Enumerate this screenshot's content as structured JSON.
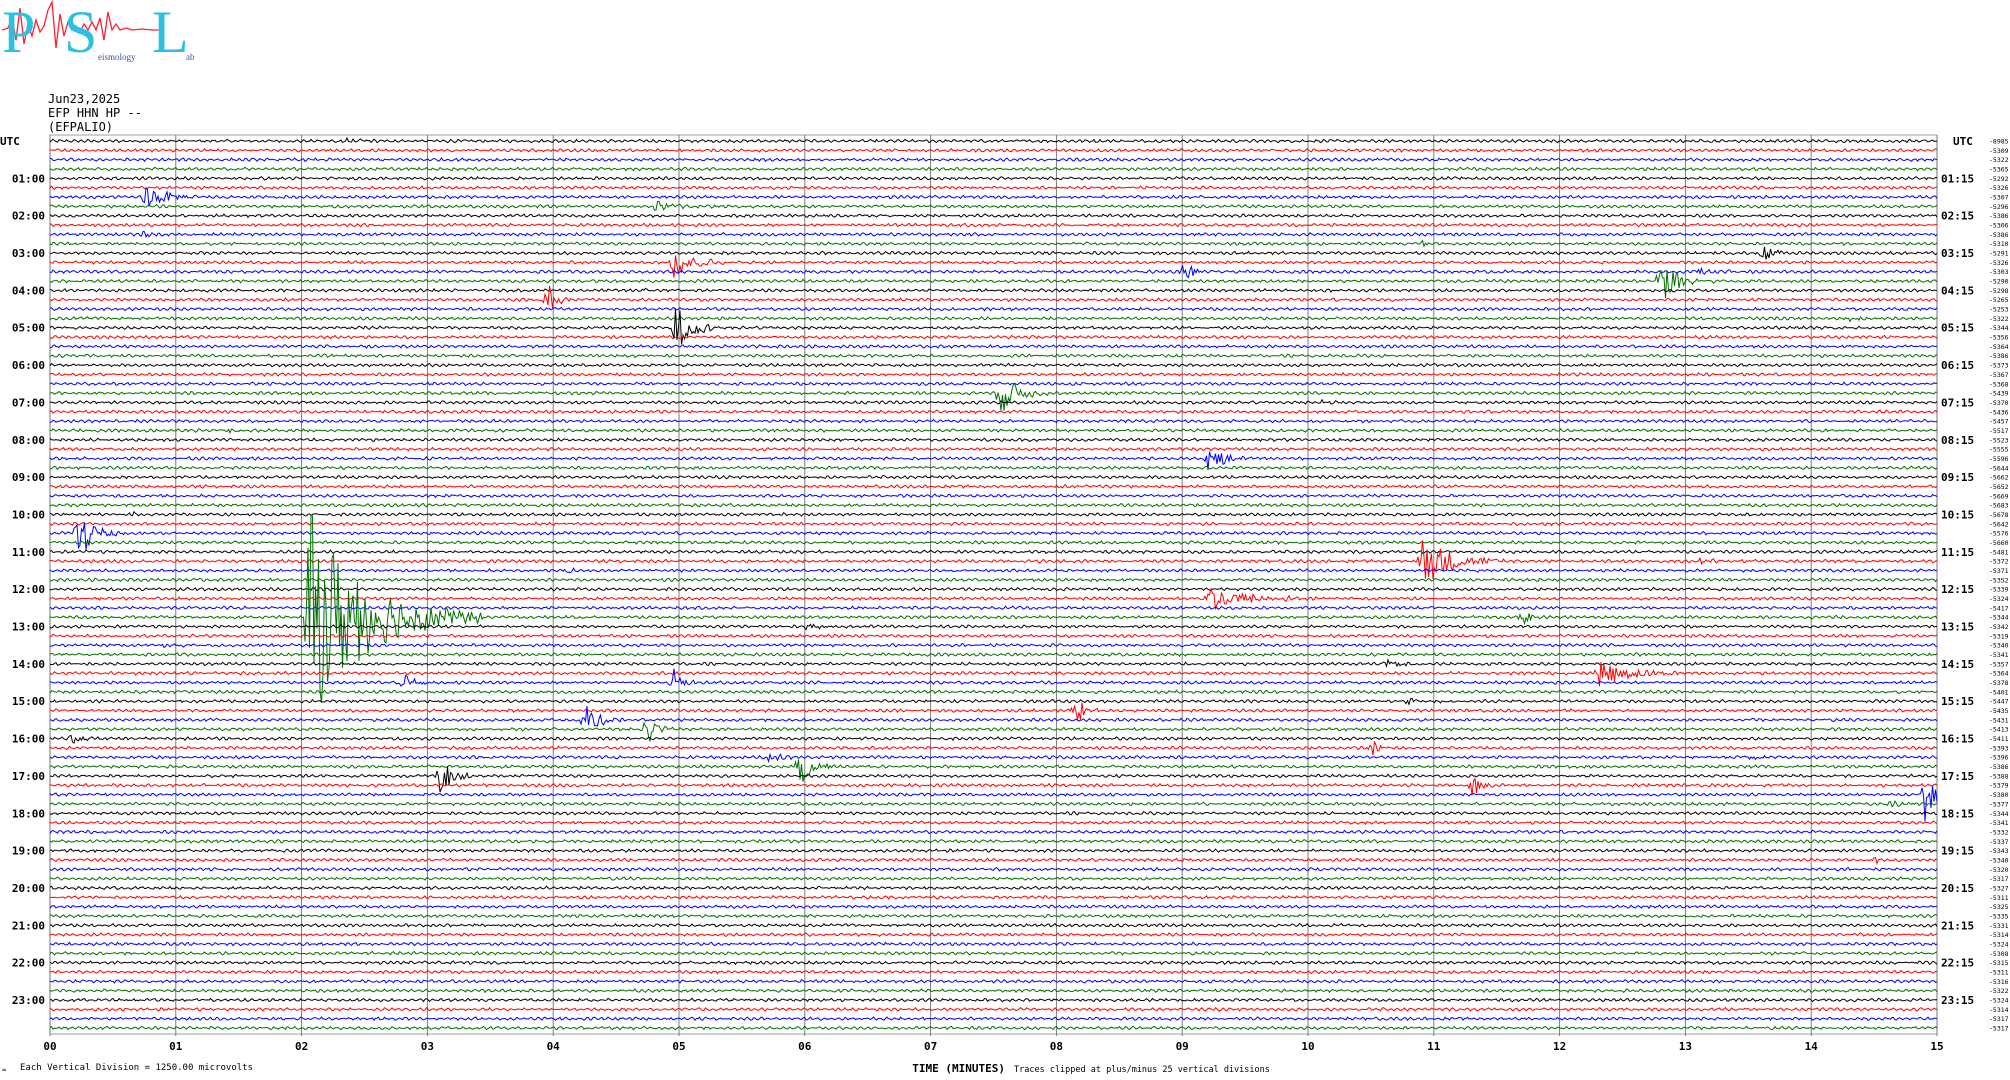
{
  "logo": {
    "letters": [
      "P",
      "S",
      "L"
    ],
    "small_words": [
      "eismology",
      "ab"
    ]
  },
  "header": {
    "date": "Jun23,2025",
    "station": "EFP HHN HP --",
    "site": "(EFPALIO)"
  },
  "footer": {
    "division_note": "Each Vertical Division = 1250.00 microvolts",
    "clip_note": "Traces clipped at plus/minus 25 vertical divisions",
    "corner_mark": "≈"
  },
  "colors": {
    "trace_cycle": [
      "#000000",
      "#ff0000",
      "#0000ff",
      "#007000"
    ],
    "grid": "#707070"
  },
  "chart_data": {
    "type": "line",
    "xlabel": "TIME (MINUTES)",
    "x_ticks": [
      "00",
      "01",
      "02",
      "03",
      "04",
      "05",
      "06",
      "07",
      "08",
      "09",
      "10",
      "11",
      "12",
      "13",
      "14",
      "15"
    ],
    "xlim": [
      0,
      15
    ],
    "left_axis_title": "UTC",
    "right_axis_title": "UTC",
    "left_hour_labels": [
      "01:00",
      "02:00",
      "03:00",
      "04:00",
      "05:00",
      "06:00",
      "07:00",
      "08:00",
      "09:00",
      "10:00",
      "11:00",
      "12:00",
      "13:00",
      "14:00",
      "15:00",
      "16:00",
      "17:00",
      "18:00",
      "19:00",
      "20:00",
      "21:00",
      "22:00",
      "23:00"
    ],
    "right_hour_labels": [
      "01:15",
      "02:15",
      "03:15",
      "04:15",
      "05:15",
      "06:15",
      "07:15",
      "08:15",
      "09:15",
      "10:15",
      "11:15",
      "12:15",
      "13:15",
      "14:15",
      "15:15",
      "16:15",
      "17:15",
      "18:15",
      "19:15",
      "20:15",
      "21:15",
      "22:15",
      "23:15"
    ],
    "trace_count": 96,
    "trace_offsets": [
      "-8985",
      "-5309",
      "-5322",
      "-5365",
      "-5292",
      "-5326",
      "-5307",
      "-5296",
      "-5386",
      "-5306",
      "-5386",
      "-5310",
      "-5291",
      "-5326",
      "-5303",
      "-5290",
      "-5298",
      "-5265",
      "-5253",
      "-5322",
      "-5344",
      "-5356",
      "-5364",
      "-5386",
      "-5373",
      "-5367",
      "-5368",
      "-5439",
      "-5370",
      "-5436",
      "-5457",
      "-5517",
      "-5523",
      "-5555",
      "-5596",
      "-5644",
      "-5662",
      "-5652",
      "-5669",
      "-5683",
      "-5678",
      "-5642",
      "-5576",
      "-5660",
      "-5481",
      "-5372",
      "-5371",
      "-5352",
      "-5339",
      "-5324",
      "-5417",
      "-5344",
      "-5342",
      "-5319",
      "-5340",
      "-5341",
      "-5357",
      "-5364",
      "-5378",
      "-5401",
      "-5447",
      "-5435",
      "-5431",
      "-5413",
      "-5411",
      "-5393",
      "-5396",
      "-5386",
      "-5388",
      "-5379",
      "-5380",
      "-5377",
      "-5344",
      "-5341",
      "-5332",
      "-5337",
      "-5343",
      "-5340",
      "-5320",
      "-5317",
      "-5327",
      "-5311",
      "-5325",
      "-5335",
      "-5331",
      "-5314",
      "-5324",
      "-5308",
      "-5315",
      "-5311",
      "-5316",
      "-5322",
      "-5324",
      "-5314",
      "-5317",
      "-5317"
    ],
    "noise_level_divisions": 0.18,
    "events": [
      {
        "trace": 0,
        "minute": 2.3,
        "amp": 0.6,
        "dur": 0.5
      },
      {
        "trace": 6,
        "minute": 0.75,
        "amp": 3.0,
        "dur": 0.5
      },
      {
        "trace": 7,
        "minute": 4.8,
        "amp": 1.2,
        "dur": 0.6
      },
      {
        "trace": 10,
        "minute": 0.72,
        "amp": 0.8,
        "dur": 0.3
      },
      {
        "trace": 11,
        "minute": 10.9,
        "amp": 0.7,
        "dur": 0.3
      },
      {
        "trace": 12,
        "minute": 13.6,
        "amp": 2.6,
        "dur": 0.3
      },
      {
        "trace": 13,
        "minute": 4.95,
        "amp": 4.0,
        "dur": 0.5
      },
      {
        "trace": 14,
        "minute": 9.0,
        "amp": 3.0,
        "dur": 0.2
      },
      {
        "trace": 15,
        "minute": 12.8,
        "amp": 5.0,
        "dur": 0.5
      },
      {
        "trace": 14,
        "minute": 13.1,
        "amp": 0.5,
        "dur": 0.8
      },
      {
        "trace": 16,
        "minute": 4.7,
        "amp": 0.8,
        "dur": 0.2
      },
      {
        "trace": 17,
        "minute": 3.95,
        "amp": 4.5,
        "dur": 0.2
      },
      {
        "trace": 19,
        "minute": 14.3,
        "amp": 0.5,
        "dur": 0.4
      },
      {
        "trace": 20,
        "minute": 4.95,
        "amp": 6.0,
        "dur": 0.4
      },
      {
        "trace": 22,
        "minute": 2.5,
        "amp": 0.5,
        "dur": 0.2
      },
      {
        "trace": 27,
        "minute": 7.55,
        "amp": 5.0,
        "dur": 0.4
      },
      {
        "trace": 28,
        "minute": 10.1,
        "amp": 0.5,
        "dur": 0.3
      },
      {
        "trace": 31,
        "minute": 1.4,
        "amp": 0.5,
        "dur": 0.3
      },
      {
        "trace": 34,
        "minute": 9.2,
        "amp": 3.5,
        "dur": 0.4
      },
      {
        "trace": 37,
        "minute": 8.0,
        "amp": 0.4,
        "dur": 0.3
      },
      {
        "trace": 40,
        "minute": 0.6,
        "amp": 0.5,
        "dur": 0.6
      },
      {
        "trace": 42,
        "minute": 0.22,
        "amp": 7.0,
        "dur": 0.4
      },
      {
        "trace": 45,
        "minute": 10.9,
        "amp": 6.0,
        "dur": 0.7
      },
      {
        "trace": 45,
        "minute": 13.1,
        "amp": 0.7,
        "dur": 0.5
      },
      {
        "trace": 46,
        "minute": 4.1,
        "amp": 0.6,
        "dur": 0.3
      },
      {
        "trace": 49,
        "minute": 9.2,
        "amp": 3.0,
        "dur": 0.9
      },
      {
        "trace": 51,
        "minute": 2.05,
        "amp": 24.0,
        "dur": 1.4
      },
      {
        "trace": 51,
        "minute": 11.7,
        "amp": 2.5,
        "dur": 0.2
      },
      {
        "trace": 52,
        "minute": 6.0,
        "amp": 0.7,
        "dur": 0.4
      },
      {
        "trace": 54,
        "minute": 0.9,
        "amp": 0.5,
        "dur": 0.4
      },
      {
        "trace": 56,
        "minute": 10.6,
        "amp": 1.0,
        "dur": 0.5
      },
      {
        "trace": 57,
        "minute": 12.3,
        "amp": 3.0,
        "dur": 0.8
      },
      {
        "trace": 58,
        "minute": 2.8,
        "amp": 3.0,
        "dur": 0.3
      },
      {
        "trace": 58,
        "minute": 4.95,
        "amp": 3.5,
        "dur": 0.2
      },
      {
        "trace": 60,
        "minute": 10.8,
        "amp": 1.0,
        "dur": 0.4
      },
      {
        "trace": 61,
        "minute": 8.15,
        "amp": 4.0,
        "dur": 0.2
      },
      {
        "trace": 62,
        "minute": 4.25,
        "amp": 5.0,
        "dur": 0.3
      },
      {
        "trace": 63,
        "minute": 4.75,
        "amp": 4.5,
        "dur": 0.2
      },
      {
        "trace": 64,
        "minute": 0.15,
        "amp": 1.5,
        "dur": 0.3
      },
      {
        "trace": 65,
        "minute": 10.5,
        "amp": 2.0,
        "dur": 0.2
      },
      {
        "trace": 66,
        "minute": 5.7,
        "amp": 1.0,
        "dur": 0.5
      },
      {
        "trace": 66,
        "minute": 13.5,
        "amp": 0.8,
        "dur": 0.3
      },
      {
        "trace": 67,
        "minute": 5.95,
        "amp": 5.0,
        "dur": 0.3
      },
      {
        "trace": 68,
        "minute": 3.1,
        "amp": 4.5,
        "dur": 0.3
      },
      {
        "trace": 69,
        "minute": 11.3,
        "amp": 3.0,
        "dur": 0.2
      },
      {
        "trace": 70,
        "minute": 14.9,
        "amp": 6.0,
        "dur": 0.4
      },
      {
        "trace": 71,
        "minute": 14.6,
        "amp": 0.8,
        "dur": 0.4
      },
      {
        "trace": 72,
        "minute": 2.5,
        "amp": 0.4,
        "dur": 0.3
      },
      {
        "trace": 77,
        "minute": 9.0,
        "amp": 0.4,
        "dur": 0.3
      },
      {
        "trace": 77,
        "minute": 14.5,
        "amp": 1.0,
        "dur": 0.1
      }
    ]
  }
}
